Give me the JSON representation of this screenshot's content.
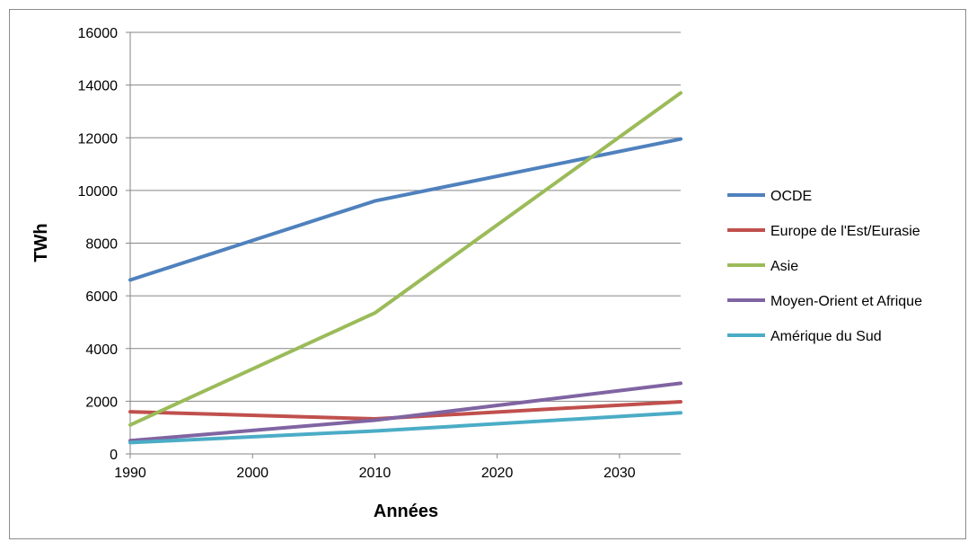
{
  "chart_data": {
    "type": "line",
    "title": "",
    "xlabel": "Années",
    "ylabel": "TWh",
    "xlim": [
      1990,
      2035
    ],
    "ylim": [
      0,
      16000
    ],
    "x_ticks": [
      1990,
      2000,
      2010,
      2020,
      2030
    ],
    "y_ticks": [
      0,
      2000,
      4000,
      6000,
      8000,
      10000,
      12000,
      14000,
      16000
    ],
    "grid": "horizontal",
    "legend_position": "right",
    "series": [
      {
        "name": "OCDE",
        "color": "#4f81bd",
        "x": [
          1990,
          2010,
          2035
        ],
        "values": [
          6600,
          9600,
          11950
        ]
      },
      {
        "name": "Europe de l'Est/Eurasie",
        "color": "#c0504d",
        "x": [
          1990,
          2010,
          2035
        ],
        "values": [
          1600,
          1330,
          1980
        ]
      },
      {
        "name": "Asie",
        "color": "#9bbb59",
        "x": [
          1990,
          2010,
          2035
        ],
        "values": [
          1100,
          5350,
          13700
        ]
      },
      {
        "name": "Moyen-Orient et Afrique",
        "color": "#8064a2",
        "x": [
          1990,
          2010,
          2035
        ],
        "values": [
          500,
          1280,
          2680
        ]
      },
      {
        "name": "Amérique du Sud",
        "color": "#4bacc6",
        "x": [
          1990,
          2010,
          2035
        ],
        "values": [
          430,
          870,
          1560
        ]
      }
    ]
  }
}
